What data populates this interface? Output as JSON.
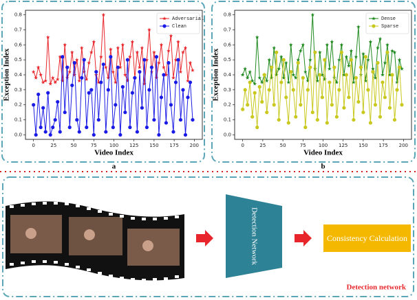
{
  "chart_data": [
    {
      "type": "line",
      "label": "a",
      "xlabel": "Video Index",
      "ylabel": "Exception Index",
      "legend": "upper right",
      "xlim": [
        -10,
        210
      ],
      "ylim": [
        -0.03,
        0.83
      ],
      "xticks": [
        0,
        25,
        50,
        75,
        100,
        125,
        150,
        175,
        200
      ],
      "yticks": [
        {
          "value": 0,
          "label": "0.0"
        },
        0.1,
        0.2,
        0.3,
        0.4,
        0.5,
        0.6,
        0.7,
        0.8
      ],
      "x": [
        0,
        3,
        6,
        9,
        12,
        15,
        18,
        21,
        24,
        27,
        30,
        33,
        36,
        39,
        42,
        45,
        48,
        51,
        54,
        57,
        60,
        63,
        66,
        69,
        72,
        75,
        78,
        81,
        84,
        87,
        90,
        93,
        96,
        99,
        102,
        105,
        108,
        111,
        114,
        117,
        120,
        123,
        126,
        129,
        132,
        135,
        138,
        141,
        144,
        147,
        150,
        153,
        156,
        159,
        162,
        165,
        168,
        171,
        174,
        177,
        180,
        183,
        186,
        189,
        192,
        195,
        198
      ],
      "series": [
        {
          "name": "Adversarial",
          "color": "#e8252a",
          "marker": "star",
          "values": [
            0.42,
            0.38,
            0.45,
            0.4,
            0.35,
            0.36,
            0.65,
            0.34,
            0.38,
            0.35,
            0.37,
            0.52,
            0.36,
            0.6,
            0.38,
            0.42,
            0.55,
            0.4,
            0.5,
            0.36,
            0.58,
            0.42,
            0.37,
            0.48,
            0.55,
            0.62,
            0.4,
            0.35,
            0.52,
            0.8,
            0.45,
            0.38,
            0.57,
            0.42,
            0.35,
            0.58,
            0.45,
            0.6,
            0.4,
            0.36,
            0.52,
            0.62,
            0.38,
            0.55,
            0.45,
            0.58,
            0.34,
            0.5,
            0.7,
            0.42,
            0.55,
            0.38,
            0.48,
            0.6,
            0.45,
            0.4,
            0.56,
            0.66,
            0.38,
            0.5,
            0.62,
            0.42,
            0.55,
            0.58,
            0.36,
            0.48,
            0.43
          ]
        },
        {
          "name": "Clean",
          "color": "#1a1ae6",
          "marker": "circle",
          "values": [
            0.2,
            0.0,
            0.27,
            0.05,
            0.18,
            0.02,
            0.28,
            0.0,
            0.05,
            0.1,
            0.22,
            0.02,
            0.52,
            0.15,
            0.45,
            0.05,
            0.33,
            0.48,
            0.1,
            0.02,
            0.38,
            0.5,
            0.05,
            0.28,
            0.3,
            0.0,
            0.42,
            0.1,
            0.35,
            0.47,
            0.02,
            0.3,
            0.52,
            0.05,
            0.2,
            0.45,
            0.0,
            0.32,
            0.15,
            0.5,
            0.05,
            0.28,
            0.38,
            0.02,
            0.42,
            0.18,
            0.5,
            0.05,
            0.3,
            0.45,
            0.1,
            0.52,
            0.0,
            0.25,
            0.4,
            0.08,
            0.48,
            0.2,
            0.02,
            0.35,
            0.5,
            0.1,
            0.3,
            0.0,
            0.25,
            0.35,
            0.1
          ]
        }
      ]
    },
    {
      "type": "line",
      "label": "b",
      "xlabel": "Video Index",
      "ylabel": "Exception Index",
      "legend": "upper right",
      "xlim": [
        -10,
        210
      ],
      "ylim": [
        -0.03,
        0.83
      ],
      "xticks": [
        0,
        25,
        50,
        75,
        100,
        125,
        150,
        175,
        200
      ],
      "yticks": [
        {
          "value": 0,
          "label": "0.0"
        },
        0.1,
        0.2,
        0.3,
        0.4,
        0.5,
        0.6,
        0.7,
        0.8
      ],
      "x": [
        0,
        3,
        6,
        9,
        12,
        15,
        18,
        21,
        24,
        27,
        30,
        33,
        36,
        39,
        42,
        45,
        48,
        51,
        54,
        57,
        60,
        63,
        66,
        69,
        72,
        75,
        78,
        81,
        84,
        87,
        90,
        93,
        96,
        99,
        102,
        105,
        108,
        111,
        114,
        117,
        120,
        123,
        126,
        129,
        132,
        135,
        138,
        141,
        144,
        147,
        150,
        153,
        156,
        159,
        162,
        165,
        168,
        171,
        174,
        177,
        180,
        183,
        186,
        189,
        192,
        195,
        198
      ],
      "series": [
        {
          "name": "Dense",
          "color": "#1e8a1e",
          "marker": "star",
          "values": [
            0.4,
            0.44,
            0.38,
            0.42,
            0.36,
            0.34,
            0.65,
            0.38,
            0.35,
            0.4,
            0.36,
            0.5,
            0.38,
            0.58,
            0.4,
            0.44,
            0.52,
            0.38,
            0.48,
            0.35,
            0.6,
            0.4,
            0.38,
            0.5,
            0.56,
            0.6,
            0.42,
            0.36,
            0.5,
            0.8,
            0.44,
            0.36,
            0.55,
            0.4,
            0.37,
            0.6,
            0.44,
            0.62,
            0.38,
            0.35,
            0.5,
            0.6,
            0.4,
            0.52,
            0.46,
            0.56,
            0.35,
            0.52,
            0.72,
            0.4,
            0.54,
            0.36,
            0.5,
            0.62,
            0.44,
            0.38,
            0.58,
            0.64,
            0.4,
            0.48,
            0.6,
            0.4,
            0.56,
            0.55,
            0.35,
            0.5,
            0.44
          ]
        },
        {
          "name": "Sparse",
          "color": "#c8c81e",
          "marker": "circle",
          "values": [
            0.17,
            0.3,
            0.2,
            0.35,
            0.12,
            0.28,
            0.05,
            0.32,
            0.22,
            0.4,
            0.15,
            0.3,
            0.45,
            0.2,
            0.55,
            0.1,
            0.35,
            0.5,
            0.25,
            0.08,
            0.42,
            0.3,
            0.12,
            0.48,
            0.2,
            0.38,
            0.05,
            0.3,
            0.45,
            0.15,
            0.55,
            0.1,
            0.4,
            0.25,
            0.5,
            0.08,
            0.35,
            0.2,
            0.45,
            0.12,
            0.3,
            0.55,
            0.18,
            0.4,
            0.25,
            0.5,
            0.1,
            0.38,
            0.22,
            0.45,
            0.15,
            0.52,
            0.3,
            0.08,
            0.42,
            0.2,
            0.48,
            0.12,
            0.35,
            0.25,
            0.55,
            0.18,
            0.4,
            0.1,
            0.3,
            0.45,
            0.2
          ]
        }
      ]
    }
  ],
  "diagram": {
    "detector": "Detection Network",
    "consistency": "Consistency Calculation",
    "caption": "Detection network"
  }
}
